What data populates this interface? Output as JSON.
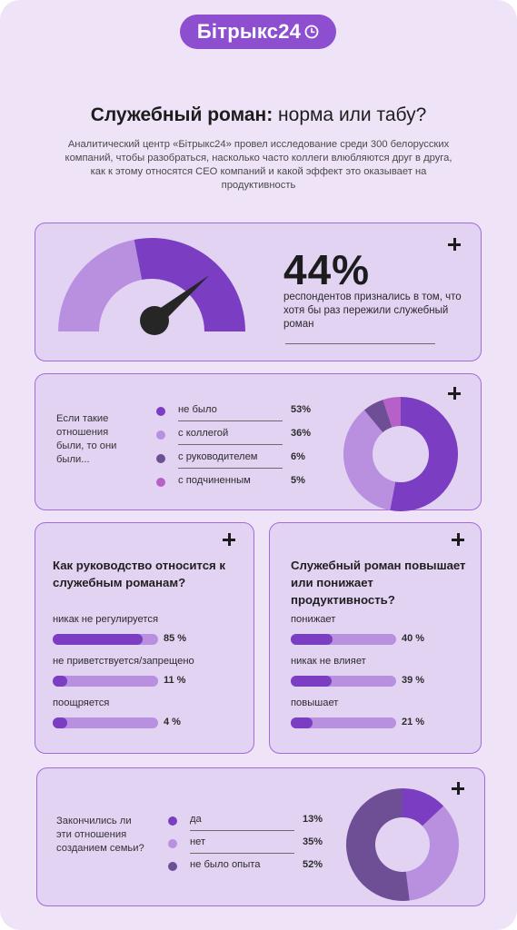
{
  "brand": {
    "logo_text": "Бітрыкс24"
  },
  "header": {
    "title_bold": "Служебный роман:",
    "title_rest": " норма или табу?",
    "subtitle": "Аналитический центр «Бітрыкс24» провел исследование среди 300 белорусских компаний, чтобы разобраться, насколько часто коллеги влюбляются друг в друга, как к этому относятся CEO компаний и какой эффект это оказывает на продуктивность"
  },
  "colors": {
    "background": "#eee3f7",
    "card": "#e2d3f3",
    "border": "#a36ad9",
    "purple_dark": "#7b3dc2",
    "purple_light": "#b98fe0",
    "purple_muted": "#6e4f96",
    "pink": "#b761c8"
  },
  "chart_data": [
    {
      "type": "gauge",
      "value": 44,
      "max": 100,
      "big_number": "44%",
      "description": "респондентов признались в том, что хотя бы раз пережили служебный роман"
    },
    {
      "type": "pie",
      "question": "Если такие отношения были, то они были...",
      "categories": [
        "не было",
        "с коллегой",
        "с руководителем",
        "с подчиненным"
      ],
      "values": [
        53,
        36,
        6,
        5
      ],
      "labels": [
        "53%",
        "36%",
        "6%",
        "5%"
      ],
      "colors": [
        "#7b3dc2",
        "#b98fe0",
        "#6e4f96",
        "#b761c8"
      ]
    },
    {
      "type": "bar",
      "title": "Как руководство относится к служебным романам?",
      "categories": [
        "никак не регулируется",
        "не приветствуется/запрещено",
        "поощряется"
      ],
      "values": [
        85,
        11,
        4
      ],
      "labels": [
        "85 %",
        "11 %",
        "4 %"
      ],
      "xlim": [
        0,
        100
      ]
    },
    {
      "type": "bar",
      "title": "Служебный роман повышает или понижает продуктивность?",
      "categories": [
        "понижает",
        "никак не влияет",
        "повышает"
      ],
      "values": [
        40,
        39,
        21
      ],
      "labels": [
        "40 %",
        "39 %",
        "21 %"
      ],
      "xlim": [
        0,
        100
      ]
    },
    {
      "type": "pie",
      "question": "Закончились ли эти отношения созданием семьи?",
      "categories": [
        "да",
        "нет",
        "не было опыта"
      ],
      "values": [
        13,
        35,
        52
      ],
      "labels": [
        "13%",
        "35%",
        "52%"
      ],
      "colors": [
        "#7b3dc2",
        "#b98fe0",
        "#6e4f96"
      ]
    }
  ]
}
